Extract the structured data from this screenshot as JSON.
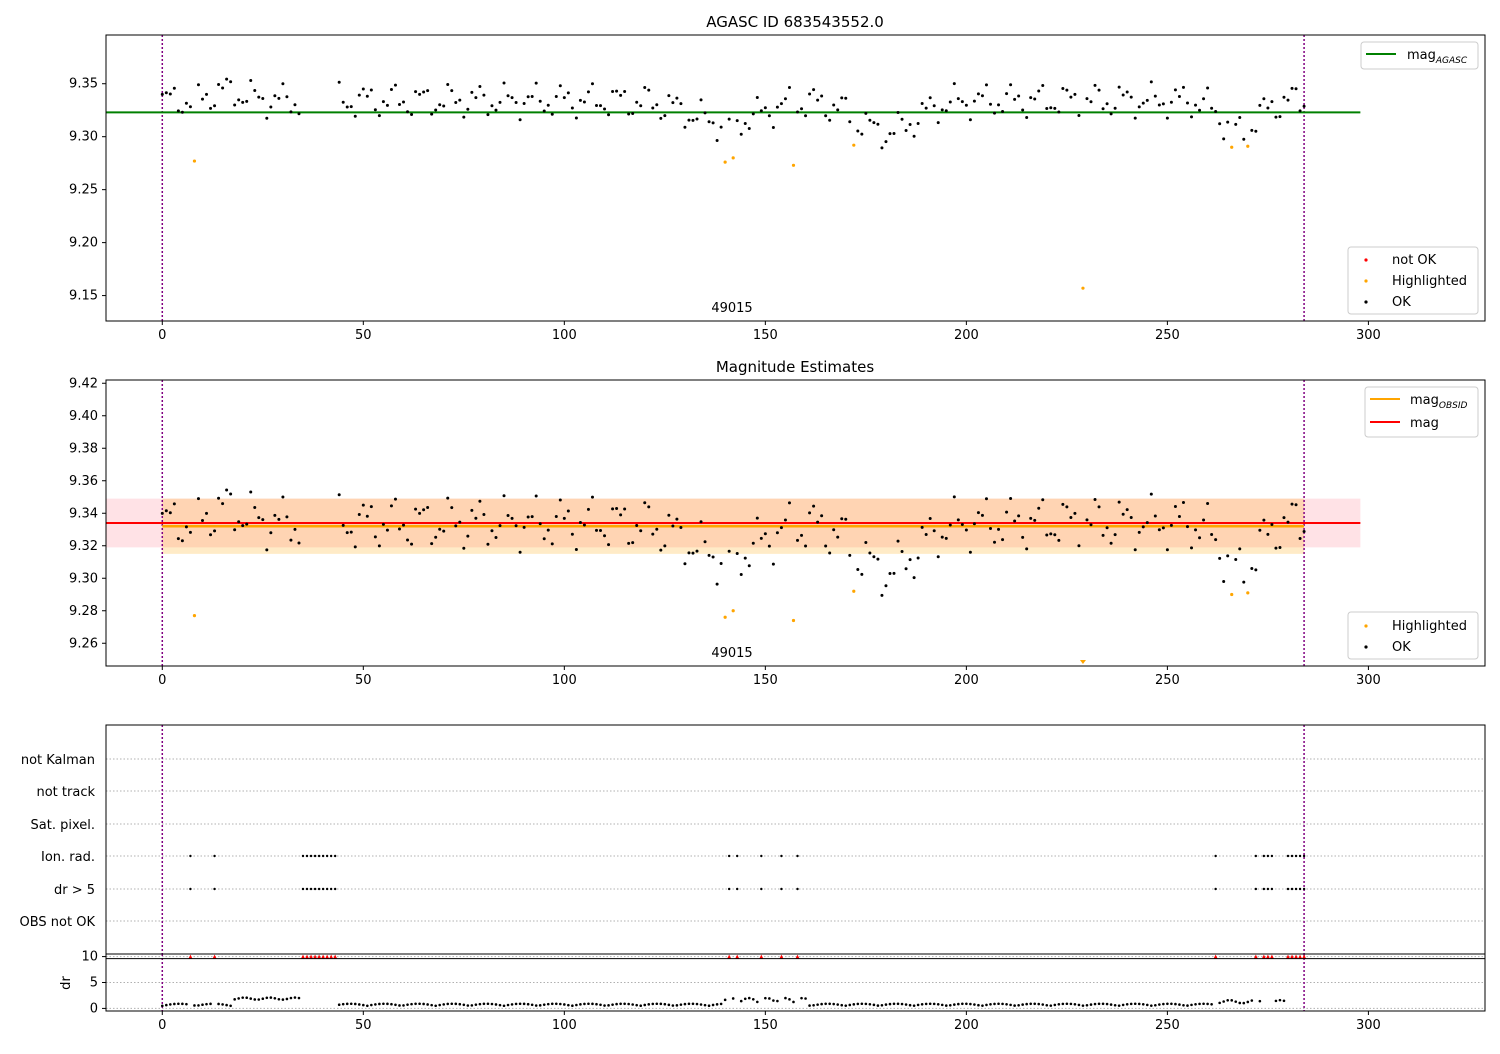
{
  "chart_data": [
    {
      "type": "scatter",
      "title": "AGASC ID 683543552.0",
      "xlim": [
        -14,
        329
      ],
      "ylim": [
        9.126,
        9.396
      ],
      "xticks": [
        0,
        50,
        100,
        150,
        200,
        250,
        300
      ],
      "yticks": [
        9.15,
        9.2,
        9.25,
        9.3,
        9.35
      ],
      "ytick_labels": [
        "9.15",
        "9.20",
        "9.25",
        "9.30",
        "9.35"
      ],
      "vlines": [
        0,
        284
      ],
      "annotation": {
        "text": "49015",
        "x": 142,
        "y": 9.14
      },
      "hline": {
        "label": "mag",
        "label_sub": "AGASC",
        "y": 9.323,
        "x_range": [
          -14,
          298
        ],
        "color": "#008000"
      },
      "legend_upper": [
        {
          "label": "mag",
          "label_sub": "AGASC",
          "color": "#008000"
        }
      ],
      "legend_lower": [
        {
          "label": "not OK",
          "color": "#ff0000"
        },
        {
          "label": "Highlighted",
          "color": "#ffa500"
        },
        {
          "label": "OK",
          "color": "#000000"
        }
      ],
      "highlighted": [
        [
          8,
          9.277
        ],
        [
          140,
          9.276
        ],
        [
          142,
          9.28
        ],
        [
          157,
          9.273
        ],
        [
          172,
          9.292
        ],
        [
          229,
          9.157
        ],
        [
          266,
          9.29
        ],
        [
          270,
          9.291
        ]
      ]
    },
    {
      "type": "scatter",
      "title": "Magnitude Estimates",
      "xlim": [
        -14,
        329
      ],
      "ylim": [
        9.246,
        9.422
      ],
      "xticks": [
        0,
        50,
        100,
        150,
        200,
        250,
        300
      ],
      "yticks": [
        9.26,
        9.28,
        9.3,
        9.32,
        9.34,
        9.36,
        9.38,
        9.4,
        9.42
      ],
      "ytick_labels": [
        "9.26",
        "9.28",
        "9.30",
        "9.32",
        "9.34",
        "9.36",
        "9.38",
        "9.40",
        "9.42"
      ],
      "vlines": [
        0,
        284
      ],
      "annotation": {
        "text": "49015",
        "x": 142,
        "y": 9.253
      },
      "mag_obsid": {
        "label": "mag",
        "label_sub": "OBSID",
        "y": 9.332,
        "band": [
          9.315,
          9.349
        ],
        "x_range": [
          0,
          284
        ],
        "color": "#ffa500"
      },
      "mag": {
        "label": "mag",
        "y": 9.334,
        "band": [
          9.319,
          9.349
        ],
        "x_range": [
          -14,
          298
        ],
        "color": "#ff0000"
      },
      "legend_upper": [
        {
          "label": "mag",
          "label_sub": "OBSID",
          "color": "#ffa500"
        },
        {
          "label": "mag",
          "color": "#ff0000"
        }
      ],
      "legend_lower": [
        {
          "label": "Highlighted",
          "color": "#ffa500"
        },
        {
          "label": "OK",
          "color": "#000000"
        }
      ],
      "highlighted": [
        [
          8,
          9.277
        ],
        [
          140,
          9.276
        ],
        [
          142,
          9.28
        ],
        [
          157,
          9.274
        ],
        [
          172,
          9.292
        ],
        [
          266,
          9.29
        ],
        [
          270,
          9.291
        ]
      ],
      "offscale_marker": {
        "x": 229,
        "color": "#ffa500"
      }
    },
    {
      "type": "scatter",
      "title": "",
      "xlim": [
        -14,
        329
      ],
      "xticks": [
        0,
        50,
        100,
        150,
        200,
        250,
        300
      ],
      "vlines": [
        0,
        284
      ],
      "categories": [
        "not Kalman",
        "not track",
        "Sat. pixel.",
        "Ion. rad.",
        "dr > 5",
        "OBS not OK"
      ],
      "flags": {
        "Ion. rad.": [
          7,
          13,
          35,
          36,
          37,
          38,
          39,
          40,
          41,
          42,
          43,
          141,
          143,
          149,
          154,
          158,
          262,
          272,
          274,
          275,
          276,
          280,
          281,
          282,
          283,
          284
        ],
        "dr > 5": [
          7,
          13,
          35,
          36,
          37,
          38,
          39,
          40,
          41,
          42,
          43,
          141,
          143,
          149,
          154,
          158,
          262,
          272,
          274,
          275,
          276,
          280,
          281,
          282,
          283,
          284
        ]
      }
    },
    {
      "type": "scatter",
      "title": "",
      "ylabel": "dr",
      "xlim": [
        -14,
        329
      ],
      "ylim": [
        -0.5,
        10.5
      ],
      "xticks": [
        0,
        50,
        100,
        150,
        200,
        250,
        300
      ],
      "xtick_labels": [
        "0",
        "50",
        "100",
        "150",
        "200",
        "250",
        "300"
      ],
      "yticks": [
        0,
        5,
        10
      ],
      "ytick_labels": [
        "0",
        "5",
        "10"
      ],
      "vlines": [
        0,
        284
      ],
      "hline": {
        "y": 9.6
      },
      "capped_x": [
        7,
        13,
        35,
        36,
        37,
        38,
        39,
        40,
        41,
        42,
        43,
        141,
        143,
        149,
        154,
        158,
        262,
        272,
        274,
        275,
        276,
        280,
        281,
        282,
        283,
        284
      ],
      "cap_value": 10,
      "cap_color": "#ff0000"
    }
  ]
}
